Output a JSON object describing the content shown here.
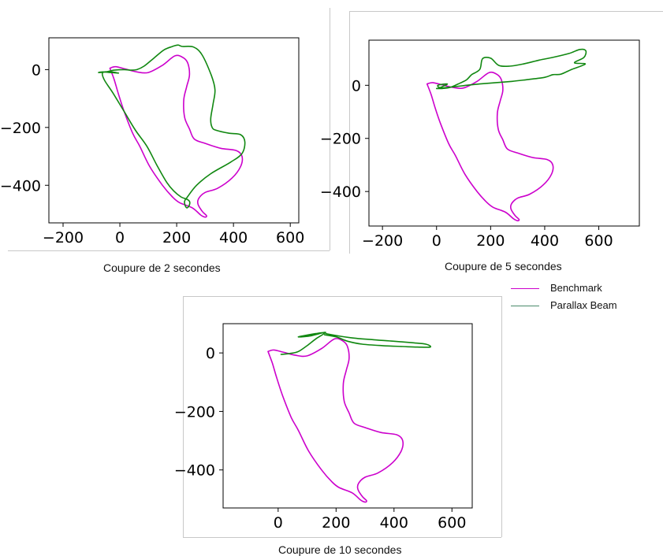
{
  "colors": {
    "benchmark": "#cc00cc",
    "parallax": "#118811",
    "legend_parallax": "#4a8a6a"
  },
  "legend": {
    "benchmark": "Benchmark",
    "parallax": "Parallax Beam"
  },
  "chart_data": [
    {
      "type": "line",
      "caption": "Coupure de 2 secondes",
      "xticks": [
        -200,
        0,
        200,
        400,
        600
      ],
      "yticks": [
        0,
        -200,
        -400
      ],
      "xlim": [
        -250,
        630
      ],
      "ylim": [
        -530,
        110
      ],
      "series": [
        {
          "name": "Benchmark",
          "x": [
            -35,
            -15,
            20,
            60,
            100,
            150,
            195,
            225,
            240,
            245,
            235,
            225,
            228,
            245,
            262,
            300,
            355,
            410,
            430,
            425,
            395,
            345,
            300,
            278,
            275,
            290,
            305,
            300,
            285,
            255,
            210,
            185,
            150,
            105,
            70,
            45,
            15,
            -5,
            -20,
            -35
          ],
          "y": [
            5,
            10,
            2,
            -8,
            -10,
            15,
            48,
            40,
            20,
            -20,
            -60,
            -105,
            -165,
            -205,
            -240,
            -255,
            -272,
            -280,
            -300,
            -335,
            -375,
            -410,
            -425,
            -445,
            -465,
            -490,
            -505,
            -510,
            -503,
            -478,
            -460,
            -440,
            -400,
            -335,
            -265,
            -220,
            -145,
            -85,
            -35,
            5
          ]
        },
        {
          "name": "Parallax Beam",
          "x": [
            -5,
            -30,
            -60,
            -55,
            -25,
            15,
            55,
            95,
            130,
            165,
            190,
            215,
            235,
            245,
            245,
            237,
            230,
            228,
            238,
            270,
            320,
            390,
            430,
            440,
            425,
            385,
            340,
            325,
            320,
            328,
            335,
            322,
            290,
            260,
            220,
            205,
            185,
            155,
            120,
            85,
            60,
            40,
            15,
            -20,
            -50,
            -75,
            -60,
            -35,
            -5
          ],
          "y": [
            -12,
            -8,
            -10,
            -35,
            -80,
            -145,
            -210,
            -265,
            -330,
            -390,
            -420,
            -440,
            -448,
            -455,
            -468,
            -478,
            -470,
            -455,
            -440,
            -400,
            -360,
            -320,
            -290,
            -250,
            -225,
            -220,
            -210,
            -200,
            -170,
            -120,
            -70,
            -20,
            50,
            78,
            80,
            85,
            80,
            68,
            40,
            12,
            0,
            -2,
            0,
            -2,
            -8,
            -10,
            -8,
            -10,
            -12
          ]
        }
      ]
    },
    {
      "type": "line",
      "caption": "Coupure de 5 secondes",
      "xticks": [
        -200,
        0,
        200,
        400,
        600
      ],
      "yticks": [
        0,
        -200,
        -400
      ],
      "xlim": [
        -250,
        750
      ],
      "ylim": [
        -530,
        170
      ],
      "series": [
        {
          "name": "Benchmark",
          "x": [
            -35,
            -15,
            20,
            60,
            100,
            150,
            195,
            225,
            240,
            245,
            235,
            225,
            228,
            245,
            262,
            300,
            355,
            410,
            430,
            425,
            395,
            345,
            300,
            278,
            275,
            290,
            305,
            300,
            285,
            255,
            210,
            185,
            150,
            105,
            70,
            45,
            15,
            -5,
            -20,
            -35
          ],
          "y": [
            5,
            10,
            2,
            -8,
            -10,
            15,
            48,
            40,
            20,
            -20,
            -60,
            -105,
            -165,
            -205,
            -240,
            -255,
            -272,
            -280,
            -300,
            -335,
            -375,
            -410,
            -425,
            -445,
            -465,
            -490,
            -505,
            -510,
            -503,
            -478,
            -460,
            -440,
            -400,
            -335,
            -265,
            -220,
            -145,
            -85,
            -35,
            5
          ]
        },
        {
          "name": "Parallax Beam",
          "x": [
            0,
            20,
            50,
            80,
            110,
            130,
            160,
            170,
            200,
            230,
            270,
            320,
            380,
            430,
            490,
            530,
            552,
            545,
            510,
            550,
            500,
            460,
            430,
            400,
            340,
            280,
            220,
            160,
            110,
            70,
            40,
            15,
            5,
            40,
            10,
            0
          ],
          "y": [
            -12,
            -12,
            -8,
            5,
            20,
            40,
            60,
            100,
            102,
            75,
            72,
            80,
            95,
            105,
            120,
            135,
            130,
            105,
            85,
            80,
            60,
            42,
            40,
            30,
            22,
            15,
            10,
            5,
            0,
            -5,
            -8,
            -10,
            0,
            5,
            -10,
            -12
          ]
        }
      ]
    },
    {
      "type": "line",
      "caption": "Coupure de 10 secondes",
      "xticks": [
        0,
        200,
        400,
        600
      ],
      "yticks": [
        0,
        -200,
        -400
      ],
      "xlim": [
        -190,
        670
      ],
      "ylim": [
        -530,
        100
      ],
      "series": [
        {
          "name": "Benchmark",
          "x": [
            -35,
            -15,
            20,
            60,
            100,
            150,
            195,
            225,
            240,
            245,
            235,
            225,
            228,
            245,
            262,
            300,
            355,
            410,
            430,
            425,
            395,
            345,
            300,
            278,
            275,
            290,
            305,
            300,
            285,
            255,
            210,
            185,
            150,
            105,
            70,
            45,
            15,
            -5,
            -20,
            -35
          ],
          "y": [
            5,
            10,
            2,
            -8,
            -10,
            15,
            48,
            40,
            20,
            -20,
            -60,
            -105,
            -165,
            -205,
            -240,
            -255,
            -272,
            -280,
            -300,
            -335,
            -375,
            -410,
            -425,
            -445,
            -465,
            -490,
            -505,
            -510,
            -503,
            -478,
            -460,
            -440,
            -400,
            -335,
            -265,
            -220,
            -145,
            -85,
            -35,
            5
          ]
        },
        {
          "name": "Parallax Beam",
          "x": [
            10,
            40,
            70,
            100,
            130,
            160,
            130,
            70,
            110,
            160,
            170,
            250,
            330,
            400,
            460,
            510,
            525,
            480,
            430,
            360,
            290,
            240,
            200,
            160
          ],
          "y": [
            -5,
            -2,
            5,
            25,
            48,
            68,
            66,
            55,
            58,
            70,
            65,
            52,
            45,
            40,
            35,
            30,
            20,
            20,
            22,
            25,
            30,
            40,
            55,
            62
          ]
        }
      ]
    }
  ]
}
